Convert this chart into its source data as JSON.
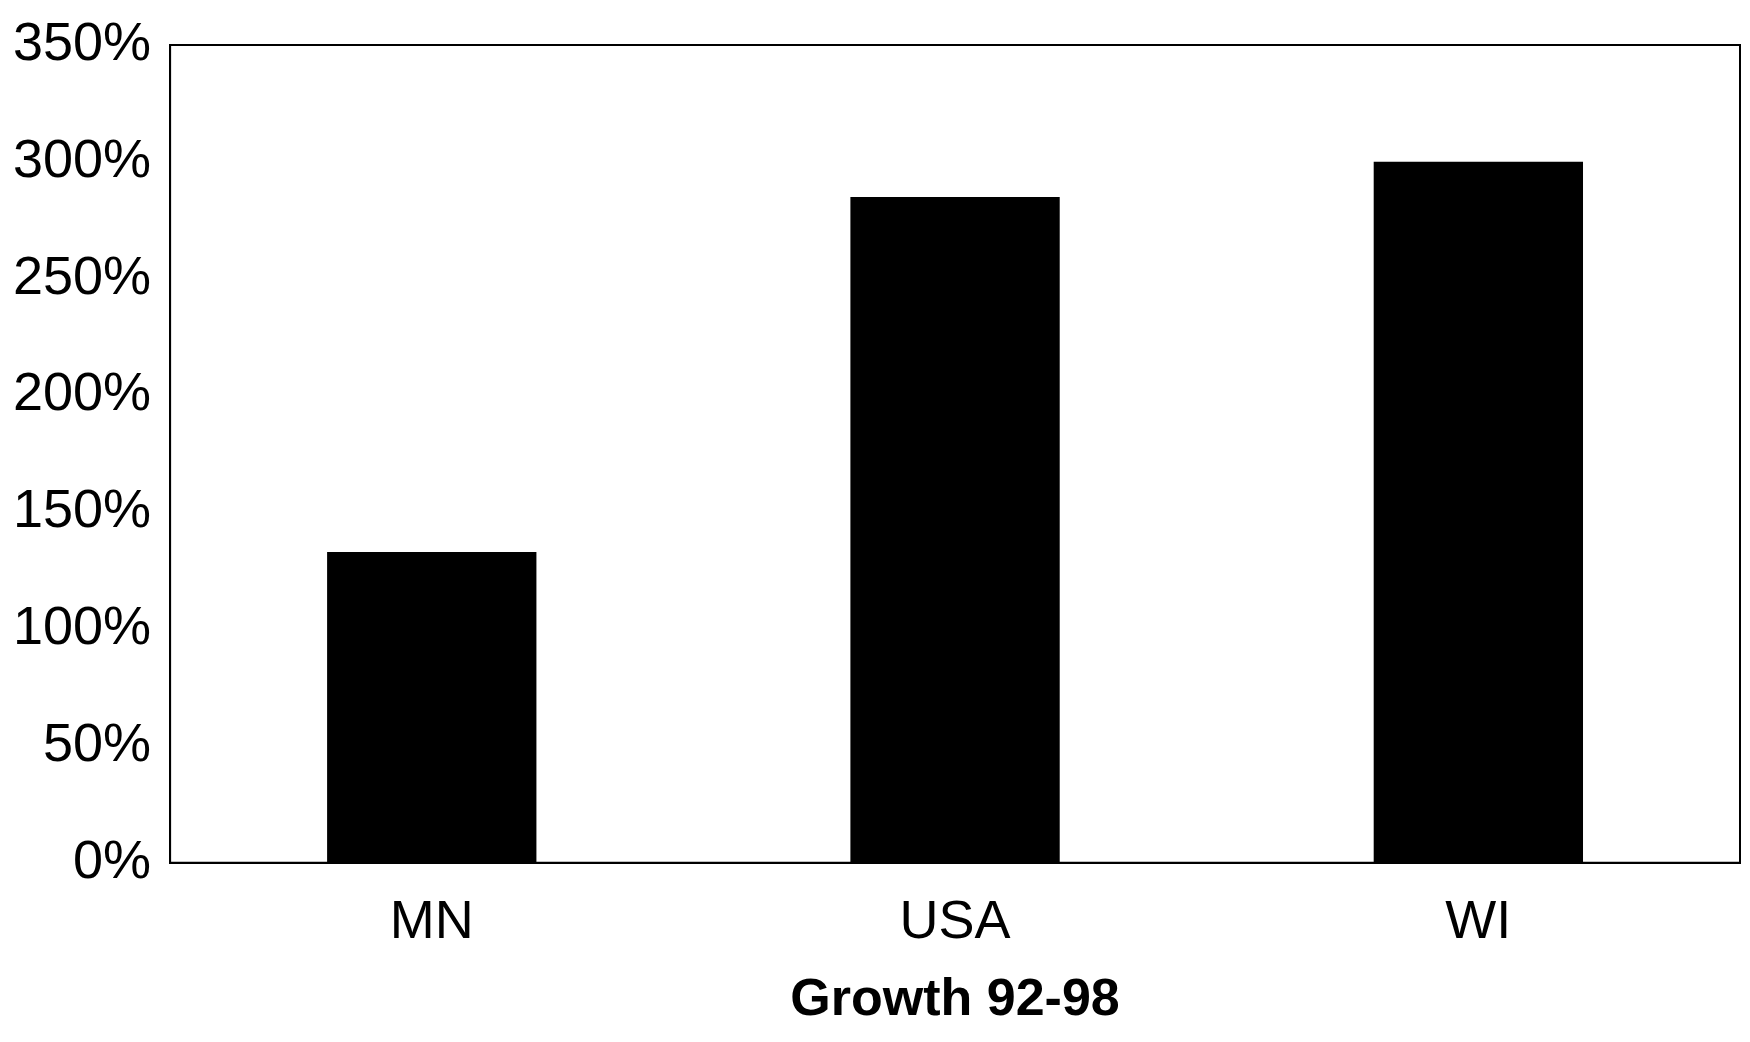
{
  "chart_data": {
    "type": "bar",
    "xlabel": "Growth 92-98",
    "categories": [
      "MN",
      "USA",
      "WI"
    ],
    "values": [
      133,
      285,
      300
    ],
    "color": "#000000",
    "ylim": [
      0,
      350
    ],
    "yticks": [
      {
        "value": 0,
        "label": "0%"
      },
      {
        "value": 50,
        "label": "50%"
      },
      {
        "value": 100,
        "label": "100%"
      },
      {
        "value": 150,
        "label": "150%"
      },
      {
        "value": 200,
        "label": "200%"
      },
      {
        "value": 250,
        "label": "250%"
      },
      {
        "value": 300,
        "label": "300%"
      },
      {
        "value": 350,
        "label": "350%"
      }
    ],
    "grid": false,
    "legend": false
  }
}
